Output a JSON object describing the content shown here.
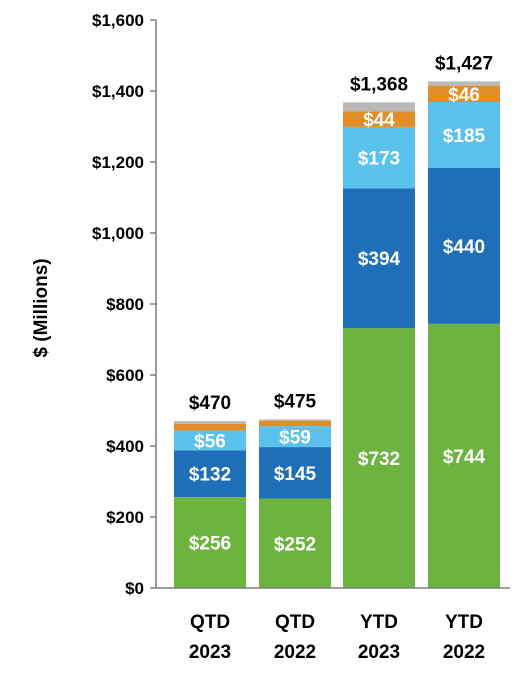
{
  "chart_data": {
    "type": "bar",
    "stacked": true,
    "ylabel": "$ (Millions)",
    "ylim": [
      0,
      1600
    ],
    "yticks": [
      0,
      200,
      400,
      600,
      800,
      1000,
      1200,
      1400,
      1600
    ],
    "ytick_labels": [
      "$0",
      "$200",
      "$400",
      "$600",
      "$800",
      "$1,000",
      "$1,200",
      "$1,400",
      "$1,600"
    ],
    "categories": [
      [
        "QTD",
        "2023"
      ],
      [
        "QTD",
        "2022"
      ],
      [
        "YTD",
        "2023"
      ],
      [
        "YTD",
        "2022"
      ]
    ],
    "series": [
      {
        "color": "#6db33f",
        "values": [
          256,
          252,
          732,
          744
        ],
        "labels": [
          "$256",
          "$252",
          "$732",
          "$744"
        ]
      },
      {
        "color": "#1f6fb8",
        "values": [
          132,
          145,
          394,
          440
        ],
        "labels": [
          "$132",
          "$145",
          "$394",
          "$440"
        ]
      },
      {
        "color": "#5bc2ee",
        "values": [
          56,
          59,
          173,
          185
        ],
        "labels": [
          "$56",
          "$59",
          "$173",
          "$185"
        ]
      },
      {
        "color": "#e28d27",
        "values": [
          18,
          15,
          44,
          46
        ],
        "labels": [
          "",
          "",
          "$44",
          "$46"
        ]
      },
      {
        "color": "#b8b8b8",
        "values": [
          8,
          4,
          25,
          12
        ],
        "labels": [
          "",
          "",
          "",
          ""
        ]
      }
    ],
    "totals": [
      470,
      475,
      1368,
      1427
    ],
    "total_labels": [
      "$470",
      "$475",
      "$1,368",
      "$1,427"
    ]
  }
}
